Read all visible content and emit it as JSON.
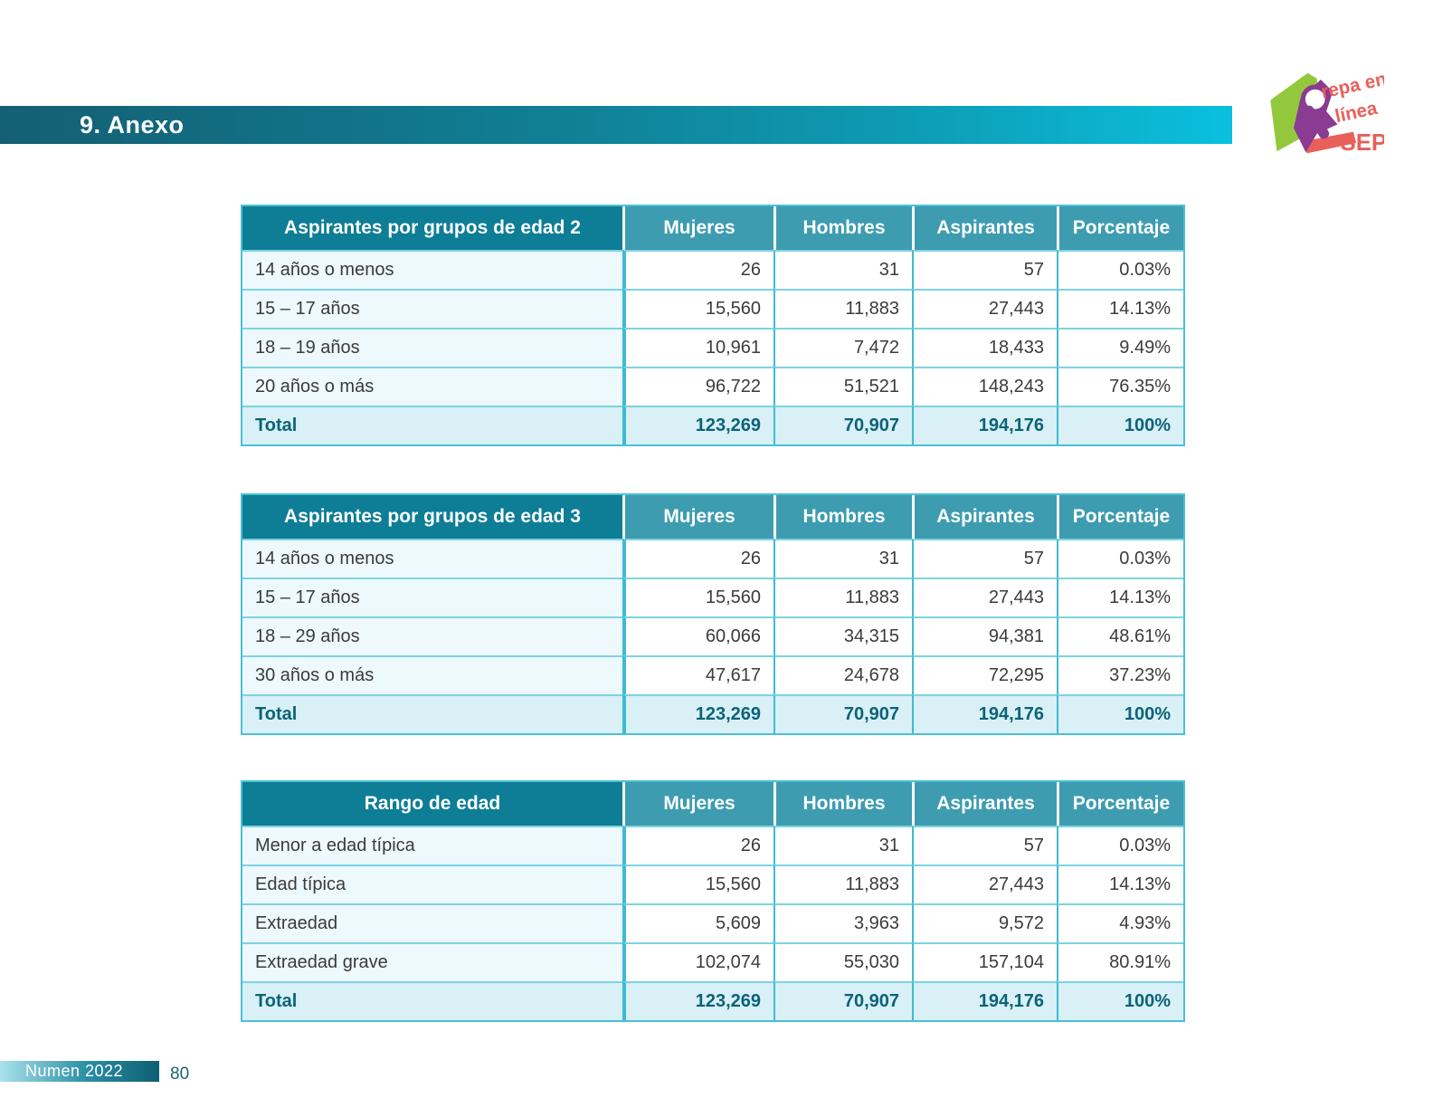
{
  "header": {
    "title": "9. Anexo"
  },
  "logo": {
    "alt": "Prepa en línea SEP",
    "line1": "repa en",
    "line2": "línea",
    "line3": "SEP",
    "colors": {
      "green": "#94c83c",
      "purple": "#8a3b92",
      "coral": "#e8605a"
    }
  },
  "theme": {
    "header_cell_dark": "#0e7d96",
    "header_cell_light": "#3e9cb0",
    "table_border": "#3cbcd2",
    "row_label_bg": "#edf9fc",
    "total_row_bg": "#d8f0f6",
    "total_text": "#0c6377",
    "title_bar_gradient": [
      "#145f73",
      "#0ac0de"
    ],
    "footer_gradient": [
      "#a9e2ec",
      "#0d5f72"
    ]
  },
  "footer": {
    "label": "Numen 2022",
    "page_number": "80"
  },
  "tables": [
    {
      "title": "Aspirantes por grupos de edad 2",
      "columns": [
        "Mujeres",
        "Hombres",
        "Aspirantes",
        "Porcentaje"
      ],
      "rows": [
        {
          "label": "14 años o menos",
          "values": [
            "26",
            "31",
            "57",
            "0.03%"
          ]
        },
        {
          "label": "15 – 17 años",
          "values": [
            "15,560",
            "11,883",
            "27,443",
            "14.13%"
          ]
        },
        {
          "label": "18 – 19 años",
          "values": [
            "10,961",
            "7,472",
            "18,433",
            "9.49%"
          ]
        },
        {
          "label": "20 años o más",
          "values": [
            "96,722",
            "51,521",
            "148,243",
            "76.35%"
          ]
        }
      ],
      "total": {
        "label": "Total",
        "values": [
          "123,269",
          "70,907",
          "194,176",
          "100%"
        ]
      }
    },
    {
      "title": "Aspirantes por grupos de edad 3",
      "columns": [
        "Mujeres",
        "Hombres",
        "Aspirantes",
        "Porcentaje"
      ],
      "rows": [
        {
          "label": "14 años o menos",
          "values": [
            "26",
            "31",
            "57",
            "0.03%"
          ]
        },
        {
          "label": "15 – 17 años",
          "values": [
            "15,560",
            "11,883",
            "27,443",
            "14.13%"
          ]
        },
        {
          "label": "18 – 29 años",
          "values": [
            "60,066",
            "34,315",
            "94,381",
            "48.61%"
          ]
        },
        {
          "label": "30 años o más",
          "values": [
            "47,617",
            "24,678",
            "72,295",
            "37.23%"
          ]
        }
      ],
      "total": {
        "label": "Total",
        "values": [
          "123,269",
          "70,907",
          "194,176",
          "100%"
        ]
      }
    },
    {
      "title": "Rango de edad",
      "columns": [
        "Mujeres",
        "Hombres",
        "Aspirantes",
        "Porcentaje"
      ],
      "rows": [
        {
          "label": "Menor a edad típica",
          "values": [
            "26",
            "31",
            "57",
            "0.03%"
          ]
        },
        {
          "label": "Edad típica",
          "values": [
            "15,560",
            "11,883",
            "27,443",
            "14.13%"
          ]
        },
        {
          "label": "Extraedad",
          "values": [
            "5,609",
            "3,963",
            "9,572",
            "4.93%"
          ]
        },
        {
          "label": "Extraedad grave",
          "values": [
            "102,074",
            "55,030",
            "157,104",
            "80.91%"
          ]
        }
      ],
      "total": {
        "label": "Total",
        "values": [
          "123,269",
          "70,907",
          "194,176",
          "100%"
        ]
      }
    }
  ]
}
